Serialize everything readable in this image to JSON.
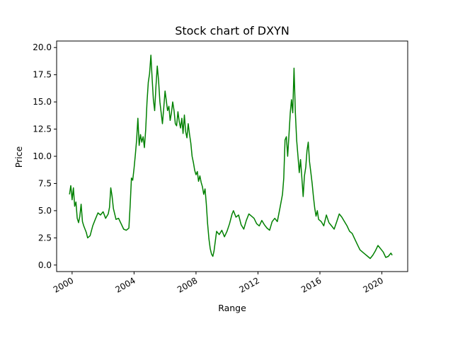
{
  "chart_data": {
    "type": "line",
    "title": "Stock chart of DXYN",
    "xlabel": "Range",
    "ylabel": "Price",
    "xlim": [
      "1999-01-01",
      "2021-09-01"
    ],
    "ylim": [
      -0.6,
      20.6
    ],
    "x_ticks": [
      "2000",
      "2004",
      "2008",
      "2012",
      "2016",
      "2020"
    ],
    "y_ticks": [
      "0.0",
      "2.5",
      "5.0",
      "7.5",
      "10.0",
      "12.5",
      "15.0",
      "17.5",
      "20.0"
    ],
    "grid": false,
    "legend": "none",
    "series": [
      {
        "color": "#008000",
        "points": [
          [
            "1999-11-01",
            6.5
          ],
          [
            "1999-12-01",
            7.3
          ],
          [
            "2000-01-01",
            6.0
          ],
          [
            "2000-02-01",
            7.1
          ],
          [
            "2000-03-01",
            5.4
          ],
          [
            "2000-04-01",
            5.8
          ],
          [
            "2000-05-01",
            4.3
          ],
          [
            "2000-06-01",
            3.9
          ],
          [
            "2000-07-01",
            4.5
          ],
          [
            "2000-08-01",
            5.6
          ],
          [
            "2000-09-01",
            4.0
          ],
          [
            "2000-10-01",
            3.6
          ],
          [
            "2000-11-01",
            3.3
          ],
          [
            "2000-12-01",
            3.0
          ],
          [
            "2001-01-01",
            2.5
          ],
          [
            "2001-03-01",
            2.7
          ],
          [
            "2001-05-01",
            3.6
          ],
          [
            "2001-07-01",
            4.2
          ],
          [
            "2001-09-01",
            4.8
          ],
          [
            "2001-11-01",
            4.6
          ],
          [
            "2002-01-01",
            4.9
          ],
          [
            "2002-03-01",
            4.3
          ],
          [
            "2002-05-01",
            4.7
          ],
          [
            "2002-06-01",
            5.3
          ],
          [
            "2002-07-01",
            7.1
          ],
          [
            "2002-08-01",
            6.3
          ],
          [
            "2002-09-01",
            5.2
          ],
          [
            "2002-11-01",
            4.2
          ],
          [
            "2003-01-01",
            4.3
          ],
          [
            "2003-03-01",
            3.8
          ],
          [
            "2003-05-01",
            3.3
          ],
          [
            "2003-07-01",
            3.2
          ],
          [
            "2003-09-01",
            3.4
          ],
          [
            "2003-10-01",
            5.5
          ],
          [
            "2003-11-01",
            8.0
          ],
          [
            "2003-12-01",
            7.8
          ],
          [
            "2004-01-01",
            8.9
          ],
          [
            "2004-02-01",
            10.2
          ],
          [
            "2004-03-01",
            11.5
          ],
          [
            "2004-04-01",
            13.5
          ],
          [
            "2004-05-01",
            11.0
          ],
          [
            "2004-06-01",
            12.0
          ],
          [
            "2004-07-01",
            11.3
          ],
          [
            "2004-08-01",
            11.8
          ],
          [
            "2004-09-01",
            10.8
          ],
          [
            "2004-10-01",
            12.4
          ],
          [
            "2004-11-01",
            15.0
          ],
          [
            "2004-12-01",
            16.8
          ],
          [
            "2005-01-01",
            17.6
          ],
          [
            "2005-02-01",
            19.3
          ],
          [
            "2005-03-01",
            17.2
          ],
          [
            "2005-04-01",
            15.2
          ],
          [
            "2005-05-01",
            14.2
          ],
          [
            "2005-06-01",
            16.5
          ],
          [
            "2005-07-01",
            18.3
          ],
          [
            "2005-08-01",
            17.0
          ],
          [
            "2005-09-01",
            15.0
          ],
          [
            "2005-10-01",
            14.0
          ],
          [
            "2005-11-01",
            13.0
          ],
          [
            "2005-12-01",
            14.4
          ],
          [
            "2006-01-01",
            16.0
          ],
          [
            "2006-02-01",
            15.1
          ],
          [
            "2006-03-01",
            14.2
          ],
          [
            "2006-04-01",
            14.6
          ],
          [
            "2006-05-01",
            13.3
          ],
          [
            "2006-06-01",
            14.0
          ],
          [
            "2006-07-01",
            15.0
          ],
          [
            "2006-08-01",
            14.2
          ],
          [
            "2006-09-01",
            13.0
          ],
          [
            "2006-10-01",
            12.8
          ],
          [
            "2006-11-01",
            14.1
          ],
          [
            "2006-12-01",
            13.2
          ],
          [
            "2007-01-01",
            12.6
          ],
          [
            "2007-02-01",
            13.5
          ],
          [
            "2007-03-01",
            12.1
          ],
          [
            "2007-04-01",
            13.8
          ],
          [
            "2007-05-01",
            12.3
          ],
          [
            "2007-06-01",
            11.7
          ],
          [
            "2007-07-01",
            13.0
          ],
          [
            "2007-08-01",
            12.0
          ],
          [
            "2007-09-01",
            11.2
          ],
          [
            "2007-10-01",
            10.0
          ],
          [
            "2007-11-01",
            9.4
          ],
          [
            "2007-12-01",
            8.7
          ],
          [
            "2008-01-01",
            8.3
          ],
          [
            "2008-02-01",
            8.6
          ],
          [
            "2008-03-01",
            7.7
          ],
          [
            "2008-04-01",
            8.2
          ],
          [
            "2008-05-01",
            7.6
          ],
          [
            "2008-06-01",
            7.2
          ],
          [
            "2008-07-01",
            6.5
          ],
          [
            "2008-08-01",
            7.0
          ],
          [
            "2008-09-01",
            5.6
          ],
          [
            "2008-10-01",
            3.8
          ],
          [
            "2008-11-01",
            2.4
          ],
          [
            "2008-12-01",
            1.5
          ],
          [
            "2009-01-01",
            1.0
          ],
          [
            "2009-02-01",
            0.8
          ],
          [
            "2009-03-01",
            1.3
          ],
          [
            "2009-04-01",
            2.2
          ],
          [
            "2009-05-01",
            3.1
          ],
          [
            "2009-07-01",
            2.8
          ],
          [
            "2009-09-01",
            3.2
          ],
          [
            "2009-11-01",
            2.6
          ],
          [
            "2010-01-01",
            3.1
          ],
          [
            "2010-03-01",
            3.8
          ],
          [
            "2010-05-01",
            4.7
          ],
          [
            "2010-06-01",
            5.0
          ],
          [
            "2010-08-01",
            4.4
          ],
          [
            "2010-10-01",
            4.6
          ],
          [
            "2010-12-01",
            3.7
          ],
          [
            "2011-02-01",
            3.3
          ],
          [
            "2011-04-01",
            4.1
          ],
          [
            "2011-06-01",
            4.7
          ],
          [
            "2011-08-01",
            4.5
          ],
          [
            "2011-10-01",
            4.3
          ],
          [
            "2011-12-01",
            3.8
          ],
          [
            "2012-02-01",
            3.6
          ],
          [
            "2012-04-01",
            4.1
          ],
          [
            "2012-06-01",
            3.7
          ],
          [
            "2012-08-01",
            3.4
          ],
          [
            "2012-10-01",
            3.2
          ],
          [
            "2012-12-01",
            4.0
          ],
          [
            "2013-02-01",
            4.3
          ],
          [
            "2013-04-01",
            4.0
          ],
          [
            "2013-06-01",
            5.2
          ],
          [
            "2013-08-01",
            6.5
          ],
          [
            "2013-09-01",
            8.0
          ],
          [
            "2013-10-01",
            11.5
          ],
          [
            "2013-11-01",
            11.8
          ],
          [
            "2013-12-01",
            10.0
          ],
          [
            "2014-01-01",
            12.0
          ],
          [
            "2014-02-01",
            14.0
          ],
          [
            "2014-03-01",
            15.2
          ],
          [
            "2014-04-01",
            14.0
          ],
          [
            "2014-05-01",
            18.1
          ],
          [
            "2014-06-01",
            14.0
          ],
          [
            "2014-07-01",
            11.5
          ],
          [
            "2014-08-01",
            10.0
          ],
          [
            "2014-09-01",
            8.5
          ],
          [
            "2014-10-01",
            9.7
          ],
          [
            "2014-11-01",
            8.0
          ],
          [
            "2014-12-01",
            6.3
          ],
          [
            "2015-01-01",
            8.2
          ],
          [
            "2015-02-01",
            9.0
          ],
          [
            "2015-03-01",
            10.5
          ],
          [
            "2015-04-01",
            11.3
          ],
          [
            "2015-05-01",
            9.5
          ],
          [
            "2015-06-01",
            8.5
          ],
          [
            "2015-07-01",
            7.5
          ],
          [
            "2015-08-01",
            6.3
          ],
          [
            "2015-09-01",
            5.2
          ],
          [
            "2015-10-01",
            4.5
          ],
          [
            "2015-11-01",
            5.0
          ],
          [
            "2015-12-01",
            4.2
          ],
          [
            "2016-02-01",
            4.0
          ],
          [
            "2016-04-01",
            3.6
          ],
          [
            "2016-06-01",
            4.6
          ],
          [
            "2016-08-01",
            3.9
          ],
          [
            "2016-10-01",
            3.6
          ],
          [
            "2016-12-01",
            3.3
          ],
          [
            "2017-02-01",
            4.0
          ],
          [
            "2017-04-01",
            4.7
          ],
          [
            "2017-06-01",
            4.4
          ],
          [
            "2017-08-01",
            4.0
          ],
          [
            "2017-10-01",
            3.6
          ],
          [
            "2017-12-01",
            3.1
          ],
          [
            "2018-02-01",
            2.9
          ],
          [
            "2018-04-01",
            2.4
          ],
          [
            "2018-06-01",
            1.9
          ],
          [
            "2018-08-01",
            1.4
          ],
          [
            "2018-10-01",
            1.2
          ],
          [
            "2018-12-01",
            1.0
          ],
          [
            "2019-02-01",
            0.8
          ],
          [
            "2019-04-01",
            0.6
          ],
          [
            "2019-06-01",
            0.9
          ],
          [
            "2019-08-01",
            1.3
          ],
          [
            "2019-10-01",
            1.8
          ],
          [
            "2019-12-01",
            1.5
          ],
          [
            "2020-02-01",
            1.2
          ],
          [
            "2020-04-01",
            0.7
          ],
          [
            "2020-06-01",
            0.8
          ],
          [
            "2020-08-01",
            1.1
          ],
          [
            "2020-09-01",
            0.9
          ]
        ]
      }
    ]
  }
}
